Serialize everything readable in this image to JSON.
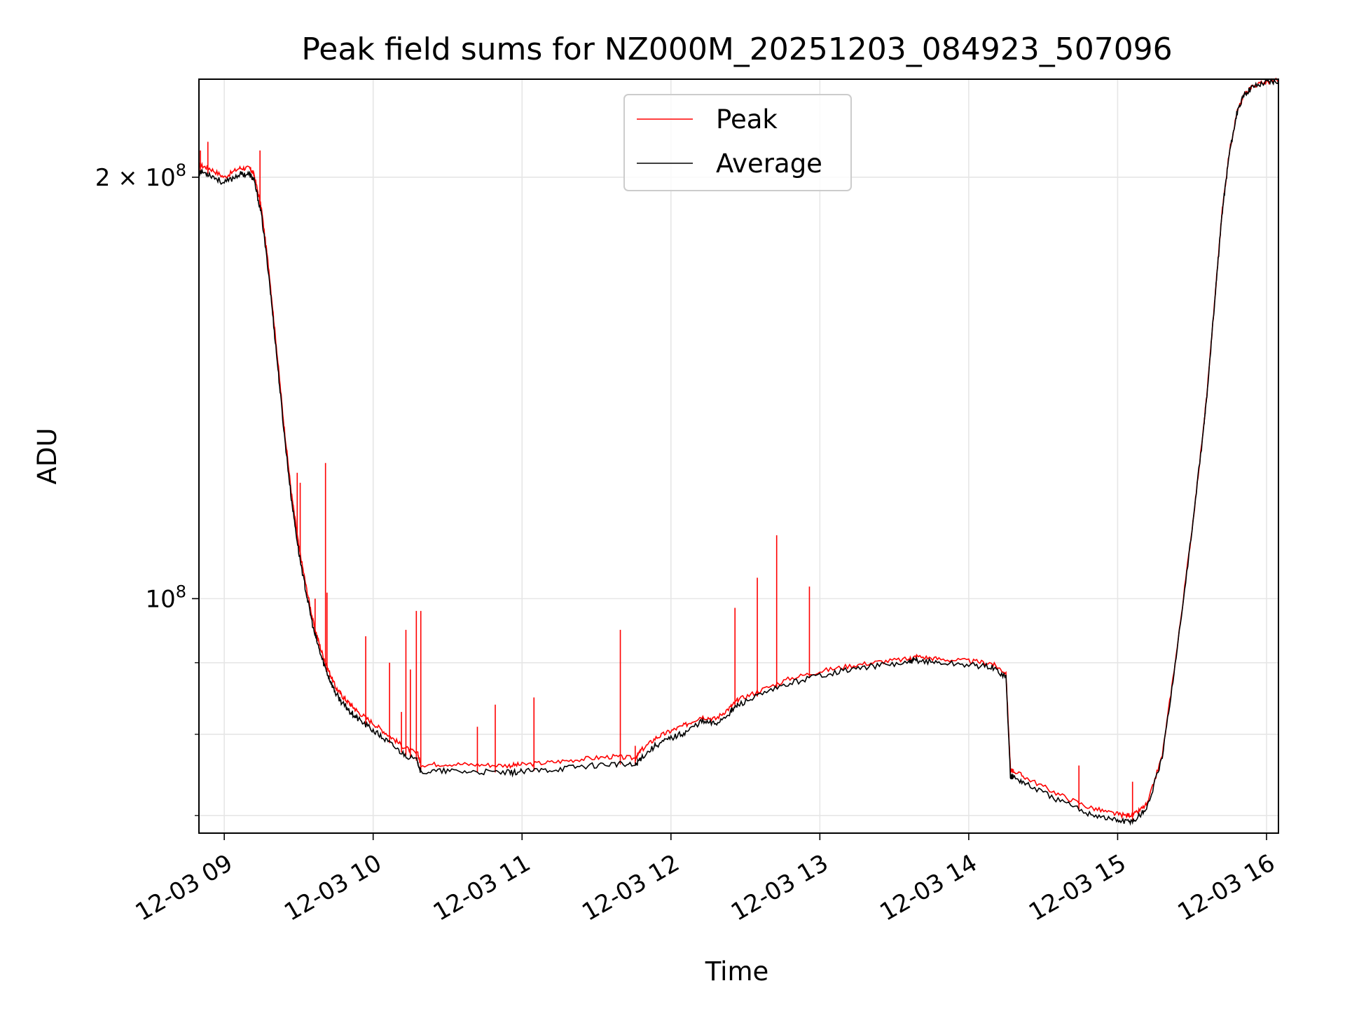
{
  "chart_data": {
    "type": "line",
    "title": "Peak field sums for NZ000M_20251203_084923_507096",
    "xlabel": "Time",
    "ylabel": "ADU",
    "yscale": "log",
    "ylim": [
      68000000,
      235000000
    ],
    "xlim_hours": [
      8.83,
      16.08
    ],
    "grid": true,
    "legend_location": "upper center",
    "x_ticks": [
      {
        "value": 9,
        "label": "12-03 09"
      },
      {
        "value": 10,
        "label": "12-03 10"
      },
      {
        "value": 11,
        "label": "12-03 11"
      },
      {
        "value": 12,
        "label": "12-03 12"
      },
      {
        "value": 13,
        "label": "12-03 13"
      },
      {
        "value": 14,
        "label": "12-03 14"
      },
      {
        "value": 15,
        "label": "12-03 15"
      },
      {
        "value": 16,
        "label": "12-03 16"
      }
    ],
    "y_ticks_major": [
      {
        "value": 100000000,
        "base": "10",
        "exp": "8",
        "prefix": ""
      },
      {
        "value": 200000000,
        "base": "10",
        "exp": "8",
        "prefix": "2 × "
      }
    ],
    "y_ticks_minor": [
      70000000,
      80000000,
      90000000
    ],
    "series": [
      {
        "name": "Peak",
        "color": "#ff0000"
      },
      {
        "name": "Average",
        "color": "#000000"
      }
    ],
    "x_hours": [
      8.83,
      8.9,
      9.0,
      9.1,
      9.17,
      9.2,
      9.25,
      9.3,
      9.35,
      9.4,
      9.45,
      9.5,
      9.55,
      9.6,
      9.65,
      9.7,
      9.75,
      9.8,
      9.85,
      9.9,
      10.0,
      10.1,
      10.2,
      10.3,
      10.32,
      10.5,
      10.7,
      10.9,
      11.0,
      11.2,
      11.4,
      11.6,
      11.76,
      11.8,
      11.9,
      12.0,
      12.1,
      12.2,
      12.3,
      12.4,
      12.45,
      12.6,
      12.8,
      13.0,
      13.2,
      13.4,
      13.6,
      13.65,
      13.8,
      14.0,
      14.15,
      14.25,
      14.28,
      14.3,
      14.4,
      14.6,
      14.8,
      14.95,
      15.05,
      15.12,
      15.2,
      15.3,
      15.4,
      15.5,
      15.58,
      15.6,
      15.65,
      15.7,
      15.75,
      15.8,
      15.85,
      15.9,
      16.0,
      16.08
    ],
    "average_values": [
      202000000,
      201000000,
      198000000,
      201000000,
      201000000,
      199000000,
      188000000,
      170000000,
      150000000,
      132000000,
      118000000,
      108000000,
      101000000,
      95000000,
      91000000,
      88000000,
      85500000,
      84000000,
      83000000,
      82000000,
      80500000,
      79000000,
      77500000,
      76500000,
      75200000,
      75300000,
      75200000,
      75100000,
      75200000,
      75500000,
      75900000,
      76200000,
      76000000,
      77000000,
      78600000,
      79500000,
      80300000,
      81700000,
      81400000,
      83000000,
      84000000,
      85300000,
      87000000,
      88200000,
      89000000,
      89600000,
      90000000,
      90400000,
      90000000,
      89700000,
      89400000,
      88000000,
      74700000,
      74600000,
      73600000,
      71800000,
      70300000,
      69600000,
      69300000,
      69500000,
      71000000,
      77000000,
      92000000,
      112000000,
      133000000,
      140000000,
      162000000,
      188000000,
      208000000,
      222000000,
      229000000,
      232000000,
      234000000,
      234500000
    ],
    "peak_offsets": [
      1.01,
      1.01,
      1.01,
      1.01,
      1.01,
      1.01,
      1.01,
      1.01,
      1.01,
      1.01,
      1.01,
      1.01,
      1.01,
      1.01,
      1.01,
      1.01,
      1.01,
      1.012,
      1.012,
      1.012,
      1.012,
      1.012,
      1.012,
      1.012,
      1.012,
      1.012,
      1.012,
      1.012,
      1.012,
      1.012,
      1.012,
      1.012,
      1.012,
      1.012,
      1.012,
      1.012,
      1.012,
      1.008,
      1.008,
      1.008,
      1.008,
      1.008,
      1.008,
      1.006,
      1.006,
      1.006,
      1.006,
      1.006,
      1.006,
      1.006,
      1.006,
      1.006,
      1.01,
      1.01,
      1.01,
      1.01,
      1.01,
      1.01,
      1.01,
      1.01,
      1.005,
      1.004,
      1.003,
      1.002,
      1.002,
      1.002,
      1.002,
      1.002,
      1.002,
      1.001,
      1.001,
      1.001,
      1.0,
      1.0
    ],
    "peak_spikes": [
      {
        "x": 8.84,
        "y": 209000000
      },
      {
        "x": 8.89,
        "y": 212000000
      },
      {
        "x": 9.24,
        "y": 209000000
      },
      {
        "x": 9.49,
        "y": 123000000
      },
      {
        "x": 9.51,
        "y": 121000000
      },
      {
        "x": 9.61,
        "y": 100000000
      },
      {
        "x": 9.68,
        "y": 125000000
      },
      {
        "x": 9.69,
        "y": 101000000
      },
      {
        "x": 9.95,
        "y": 94000000
      },
      {
        "x": 10.11,
        "y": 90000000
      },
      {
        "x": 10.19,
        "y": 83000000
      },
      {
        "x": 10.22,
        "y": 95000000
      },
      {
        "x": 10.25,
        "y": 89000000
      },
      {
        "x": 10.29,
        "y": 98000000
      },
      {
        "x": 10.32,
        "y": 98000000
      },
      {
        "x": 10.7,
        "y": 81000000
      },
      {
        "x": 10.82,
        "y": 84000000
      },
      {
        "x": 11.08,
        "y": 85000000
      },
      {
        "x": 11.66,
        "y": 95000000
      },
      {
        "x": 11.76,
        "y": 78500000
      },
      {
        "x": 12.43,
        "y": 98500000
      },
      {
        "x": 12.58,
        "y": 103500000
      },
      {
        "x": 12.71,
        "y": 111000000
      },
      {
        "x": 12.93,
        "y": 102000000
      },
      {
        "x": 14.74,
        "y": 76000000
      },
      {
        "x": 15.1,
        "y": 74000000
      }
    ]
  }
}
